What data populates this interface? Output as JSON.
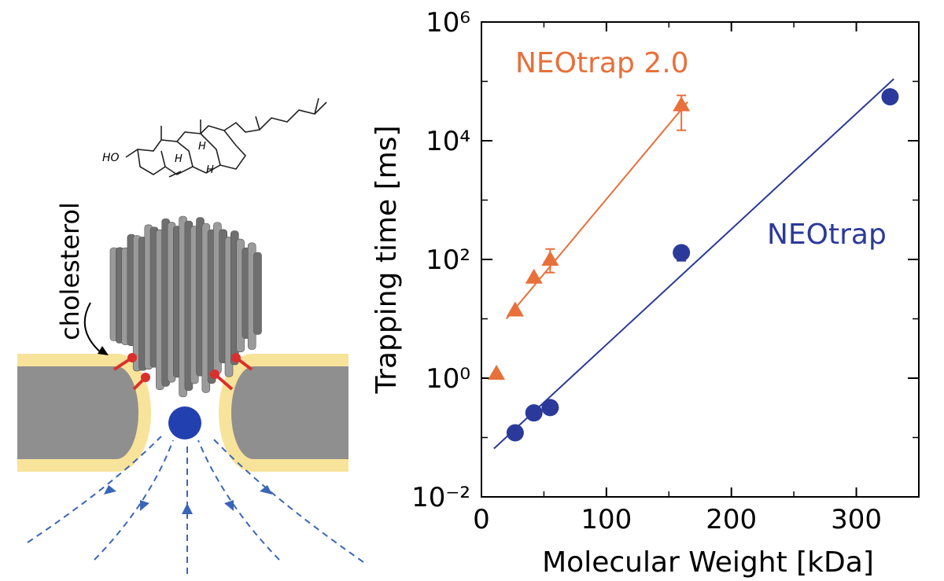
{
  "illustration": {
    "label": "cholesterol",
    "molecule_labels": [
      "HO",
      "H",
      "H",
      "H"
    ]
  },
  "chart_data": {
    "type": "scatter",
    "xlabel": "Molecular Weight [kDa]",
    "ylabel": "Trapping time [ms]",
    "xlim": [
      0,
      350
    ],
    "xticks": [
      0,
      100,
      200,
      300
    ],
    "ylim": [
      0.01,
      1000000
    ],
    "log_y": true,
    "yticks": [
      {
        "value": 0.01,
        "label": "10⁻²"
      },
      {
        "value": 1,
        "label": "10⁰"
      },
      {
        "value": 100,
        "label": "10²"
      },
      {
        "value": 10000,
        "label": "10⁴"
      },
      {
        "value": 1000000,
        "label": "10⁶"
      }
    ],
    "series": [
      {
        "name": "NEOtrap 2.0",
        "color": "#e8703a",
        "marker": "triangle",
        "x": [
          12,
          27,
          42,
          55,
          160
        ],
        "values": [
          1.2,
          14,
          50,
          100,
          40000
        ],
        "err_low": [
          null,
          null,
          null,
          60,
          15000
        ],
        "err_high": [
          null,
          null,
          null,
          150,
          58000
        ],
        "fit": {
          "x": [
            20,
            165
          ],
          "values": [
            10,
            45000
          ]
        }
      },
      {
        "name": "NEOtrap",
        "color": "#2b3a9a",
        "marker": "circle",
        "x": [
          27,
          42,
          55,
          160,
          327
        ],
        "values": [
          0.12,
          0.26,
          0.32,
          130,
          55000
        ],
        "err_low": [
          null,
          null,
          null,
          95,
          null
        ],
        "err_high": [
          null,
          null,
          null,
          null,
          null
        ],
        "fit": {
          "x": [
            10,
            330
          ],
          "values": [
            0.065,
            110000
          ]
        }
      }
    ]
  }
}
